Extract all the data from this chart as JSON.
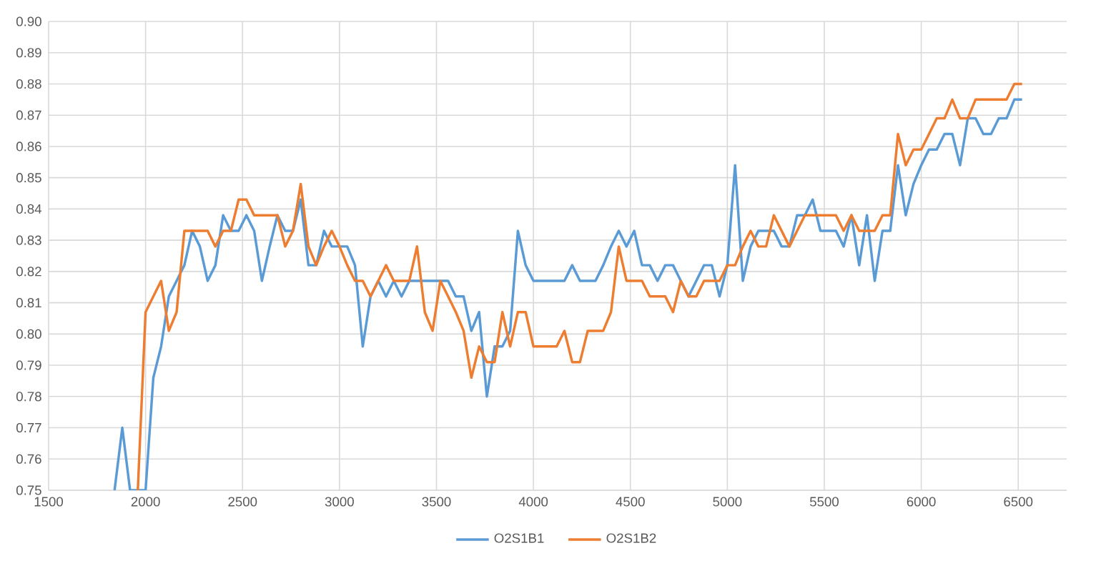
{
  "chart_data": {
    "type": "line",
    "x": [
      1840,
      1880,
      1920,
      1960,
      2000,
      2040,
      2080,
      2120,
      2160,
      2200,
      2240,
      2280,
      2320,
      2360,
      2400,
      2440,
      2480,
      2520,
      2560,
      2600,
      2640,
      2680,
      2720,
      2760,
      2800,
      2840,
      2880,
      2920,
      2960,
      3000,
      3040,
      3080,
      3120,
      3160,
      3200,
      3240,
      3280,
      3320,
      3360,
      3400,
      3440,
      3480,
      3520,
      3560,
      3600,
      3640,
      3680,
      3720,
      3760,
      3800,
      3840,
      3880,
      3920,
      3960,
      4000,
      4040,
      4080,
      4120,
      4160,
      4200,
      4240,
      4280,
      4320,
      4360,
      4400,
      4440,
      4480,
      4520,
      4560,
      4600,
      4640,
      4680,
      4720,
      4760,
      4800,
      4840,
      4880,
      4920,
      4960,
      5000,
      5040,
      5080,
      5120,
      5160,
      5200,
      5240,
      5280,
      5320,
      5360,
      5400,
      5440,
      5480,
      5520,
      5560,
      5600,
      5640,
      5680,
      5720,
      5760,
      5800,
      5840,
      5880,
      5920,
      5960,
      6000,
      6040,
      6080,
      6120,
      6160,
      6200,
      6240,
      6280,
      6320,
      6360,
      6400,
      6440,
      6480,
      6520
    ],
    "series": [
      {
        "name": "O2S1B1",
        "color": "#5b9bd5",
        "values": [
          0.75,
          0.77,
          0.75,
          0.75,
          0.75,
          0.786,
          0.796,
          0.812,
          0.817,
          0.822,
          0.833,
          0.828,
          0.817,
          0.822,
          0.838,
          0.833,
          0.833,
          0.838,
          0.833,
          0.817,
          0.828,
          0.838,
          0.833,
          0.833,
          0.843,
          0.822,
          0.822,
          0.833,
          0.828,
          0.828,
          0.828,
          0.822,
          0.796,
          0.812,
          0.817,
          0.812,
          0.817,
          0.812,
          0.817,
          0.817,
          0.817,
          0.817,
          0.817,
          0.817,
          0.812,
          0.812,
          0.801,
          0.807,
          0.78,
          0.796,
          0.796,
          0.801,
          0.833,
          0.822,
          0.817,
          0.817,
          0.817,
          0.817,
          0.817,
          0.822,
          0.817,
          0.817,
          0.817,
          0.822,
          0.828,
          0.833,
          0.828,
          0.833,
          0.822,
          0.822,
          0.817,
          0.822,
          0.822,
          0.817,
          0.812,
          0.817,
          0.822,
          0.822,
          0.812,
          0.822,
          0.854,
          0.817,
          0.828,
          0.833,
          0.833,
          0.833,
          0.828,
          0.828,
          0.838,
          0.838,
          0.843,
          0.833,
          0.833,
          0.833,
          0.828,
          0.838,
          0.822,
          0.838,
          0.817,
          0.833,
          0.833,
          0.854,
          0.838,
          0.848,
          0.854,
          0.859,
          0.859,
          0.864,
          0.864,
          0.854,
          0.869,
          0.869,
          0.864,
          0.864,
          0.869,
          0.869,
          0.875,
          0.875
        ]
      },
      {
        "name": "O2S1B2",
        "color": "#ed7d31",
        "values": [
          null,
          null,
          null,
          0.75,
          0.807,
          0.812,
          0.817,
          0.801,
          0.807,
          0.833,
          0.833,
          0.833,
          0.833,
          0.828,
          0.833,
          0.833,
          0.843,
          0.843,
          0.838,
          0.838,
          0.838,
          0.838,
          0.828,
          0.833,
          0.848,
          0.828,
          0.822,
          0.828,
          0.833,
          0.828,
          0.822,
          0.817,
          0.817,
          0.812,
          0.817,
          0.822,
          0.817,
          0.817,
          0.817,
          0.828,
          0.807,
          0.801,
          0.817,
          0.812,
          0.807,
          0.801,
          0.786,
          0.796,
          0.791,
          0.791,
          0.807,
          0.796,
          0.807,
          0.807,
          0.796,
          0.796,
          0.796,
          0.796,
          0.801,
          0.791,
          0.791,
          0.801,
          0.801,
          0.801,
          0.807,
          0.828,
          0.817,
          0.817,
          0.817,
          0.812,
          0.812,
          0.812,
          0.807,
          0.817,
          0.812,
          0.812,
          0.817,
          0.817,
          0.817,
          0.822,
          0.822,
          0.828,
          0.833,
          0.828,
          0.828,
          0.838,
          0.833,
          0.828,
          0.833,
          0.838,
          0.838,
          0.838,
          0.838,
          0.838,
          0.833,
          0.838,
          0.833,
          0.833,
          0.833,
          0.838,
          0.838,
          0.864,
          0.854,
          0.859,
          0.859,
          0.864,
          0.869,
          0.869,
          0.875,
          0.869,
          0.869,
          0.875,
          0.875,
          0.875,
          0.875,
          0.875,
          0.88,
          0.88
        ]
      }
    ],
    "xlim": [
      1500,
      6750
    ],
    "ylim": [
      0.75,
      0.9
    ],
    "xticks": [
      1500,
      2000,
      2500,
      3000,
      3500,
      4000,
      4500,
      5000,
      5500,
      6000,
      6500
    ],
    "yticks": [
      {
        "value": 0.75,
        "label": "0.75"
      },
      {
        "value": 0.76,
        "label": "0.76"
      },
      {
        "value": 0.77,
        "label": "0.77"
      },
      {
        "value": 0.78,
        "label": "0.78"
      },
      {
        "value": 0.79,
        "label": "0.79"
      },
      {
        "value": 0.8,
        "label": "0.80"
      },
      {
        "value": 0.81,
        "label": "0.81"
      },
      {
        "value": 0.82,
        "label": "0.82"
      },
      {
        "value": 0.83,
        "label": "0.83"
      },
      {
        "value": 0.84,
        "label": "0.84"
      },
      {
        "value": 0.85,
        "label": "0.85"
      },
      {
        "value": 0.86,
        "label": "0.86"
      },
      {
        "value": 0.87,
        "label": "0.87"
      },
      {
        "value": 0.88,
        "label": "0.88"
      },
      {
        "value": 0.89,
        "label": "0.89"
      },
      {
        "value": 0.9,
        "label": "0.90"
      }
    ],
    "grid": true,
    "legend": "bottom"
  }
}
